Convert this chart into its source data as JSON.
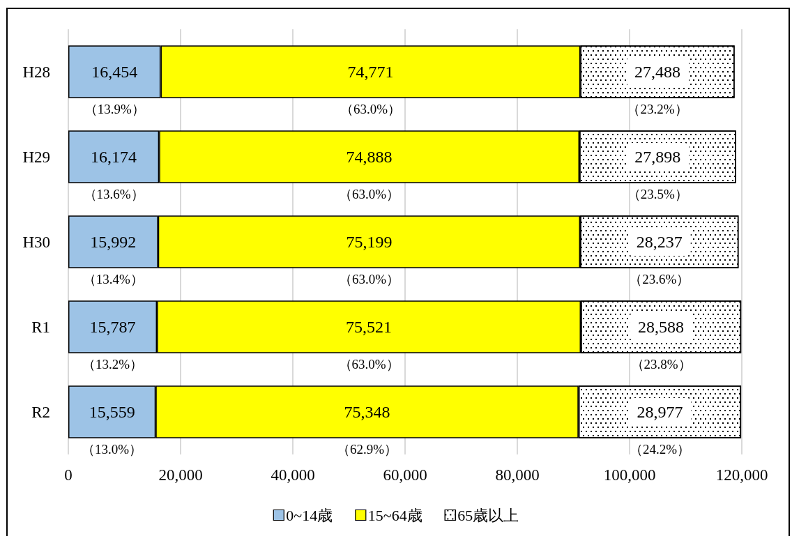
{
  "chart_data": {
    "type": "bar",
    "orientation": "horizontal",
    "stacked": true,
    "categories": [
      "H28",
      "H29",
      "H30",
      "R1",
      "R2"
    ],
    "series": [
      {
        "name": "0~14歳",
        "color": "#9dc3e6",
        "values": [
          16454,
          16174,
          15992,
          15787,
          15559
        ],
        "value_labels": [
          "16,454",
          "16,174",
          "15,992",
          "15,787",
          "15,559"
        ]
      },
      {
        "name": "15~64歳",
        "color": "#ffff00",
        "values": [
          74771,
          74888,
          75199,
          75521,
          75348
        ],
        "value_labels": [
          "74,771",
          "74,888",
          "75,199",
          "75,521",
          "75,348"
        ]
      },
      {
        "name": "65歳以上",
        "color": "#ffffff",
        "values": [
          27488,
          27898,
          28237,
          28588,
          28977
        ],
        "value_labels": [
          "27,488",
          "27,898",
          "28,237",
          "28,588",
          "28,977"
        ]
      }
    ],
    "xlim": [
      0,
      120000
    ],
    "xticks": [
      {
        "value": 0,
        "label": "0"
      },
      {
        "value": 20000,
        "label": "20,000"
      },
      {
        "value": 40000,
        "label": "40,000"
      },
      {
        "value": 60000,
        "label": "60,000"
      },
      {
        "value": 80000,
        "label": "80,000"
      },
      {
        "value": 100000,
        "label": "100,000"
      },
      {
        "value": 120000,
        "label": "120,000"
      }
    ],
    "grid": "x",
    "legend": "bottom",
    "annotations": [
      "（13.9%）",
      "（63.0%）",
      "（23.2%）",
      "（13.6%）",
      "（63.0%）",
      "（23.5%）",
      "（13.4%）",
      "（63.0%）",
      "（23.6%）",
      "（13.2%）",
      "（63.0%）",
      "（23.8%）",
      "（13.0%）",
      "（62.9%）",
      "（24.2%）"
    ]
  }
}
